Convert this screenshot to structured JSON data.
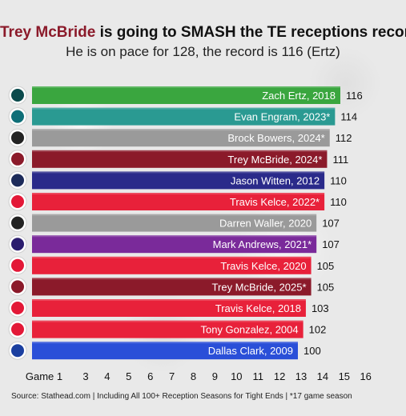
{
  "header": {
    "title_highlight": "Trey McBride",
    "title_rest": " is going to SMASH the TE receptions record",
    "subtitle": "He is on pace for 128, the record is 116 (Ertz)"
  },
  "footer": {
    "source": "Source: Stathead.com | Including All 100+ Reception Seasons for Tight Ends | *17 game season"
  },
  "chart_data": {
    "type": "bar",
    "orientation": "horizontal",
    "x_axis_label_first": "Game 1",
    "x_ticks": [
      "Game 1",
      "3",
      "4",
      "5",
      "6",
      "7",
      "8",
      "9",
      "10",
      "11",
      "12",
      "13",
      "14",
      "15",
      "16"
    ],
    "x_range": [
      1,
      16
    ],
    "grid": false,
    "categories": [
      "Zach Ertz, 2018",
      "Evan Engram, 2023*",
      "Brock Bowers, 2024*",
      "Trey McBride, 2024*",
      "Jason Witten, 2012",
      "Travis Kelce, 2022*",
      "Darren Waller, 2020",
      "Mark Andrews, 2021*",
      "Travis Kelce, 2020",
      "Trey McBride, 2025*",
      "Travis Kelce, 2018",
      "Tony Gonzalez, 2004",
      "Dallas Clark, 2009"
    ],
    "values": [
      116,
      114,
      112,
      111,
      110,
      110,
      107,
      107,
      105,
      105,
      103,
      102,
      100
    ],
    "bar_colors": [
      "#3aa63f",
      "#2a9a92",
      "#9a9a9a",
      "#8b1a2a",
      "#2a2a8a",
      "#e8213a",
      "#9a9a9a",
      "#7a2a9a",
      "#e8213a",
      "#8b1a2a",
      "#e8213a",
      "#e8213a",
      "#2a4fd8"
    ],
    "icons": [
      "eagles-logo-icon",
      "jaguars-logo-icon",
      "raiders-logo-icon",
      "cardinals-logo-icon",
      "cowboys-logo-icon",
      "chiefs-logo-icon",
      "raiders-logo-icon",
      "ravens-logo-icon",
      "chiefs-logo-icon",
      "cardinals-logo-icon",
      "chiefs-logo-icon",
      "chiefs-logo-icon",
      "colts-logo-icon"
    ],
    "icon_colors": [
      "#0b4a4c",
      "#0f6f78",
      "#222222",
      "#8b1a2a",
      "#1d2b5a",
      "#e31837",
      "#222222",
      "#2b1d6e",
      "#e31837",
      "#8b1a2a",
      "#e31837",
      "#e31837",
      "#1b3fa0"
    ]
  }
}
